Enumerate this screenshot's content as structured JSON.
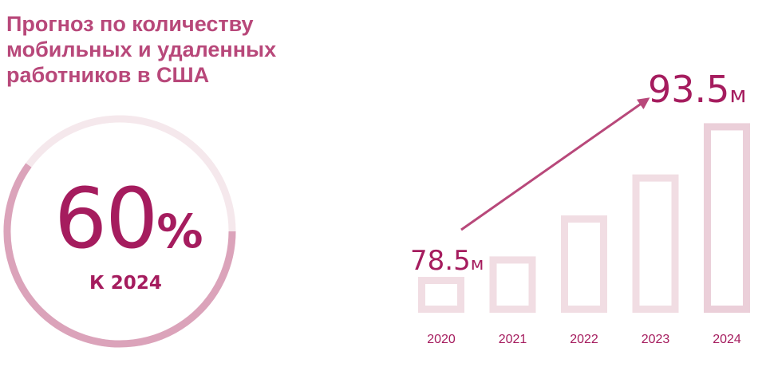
{
  "title_lines": [
    "Прогноз по количеству",
    "мобильных и удаленных",
    "работников в США"
  ],
  "highlight": {
    "value": "60",
    "symbol": "%",
    "subtitle": "К 2024",
    "fraction": 0.6
  },
  "colors": {
    "accent": "#a51c5e",
    "title": "#b8487a",
    "bar": "#f1dde3",
    "bar_last": "#ebcfd9",
    "ring_light": "#f5e8ec",
    "ring_dark": "#dba3ba",
    "arrow": "#b8487a"
  },
  "chart_data": {
    "type": "bar",
    "categories": [
      "2020",
      "2021",
      "2022",
      "2023",
      "2024"
    ],
    "values": [
      78.5,
      80.5,
      84.5,
      88.5,
      93.5
    ],
    "unit": "м",
    "data_labels": [
      {
        "category": "2020",
        "number": "78.5",
        "unit": "м"
      },
      {
        "category": "2024",
        "number": "93.5",
        "unit": "м"
      }
    ],
    "ylim": [
      75,
      94
    ],
    "title": "",
    "xlabel": "",
    "ylabel": "",
    "grid": false,
    "arrow": {
      "from": "2020",
      "to": "2024"
    }
  }
}
